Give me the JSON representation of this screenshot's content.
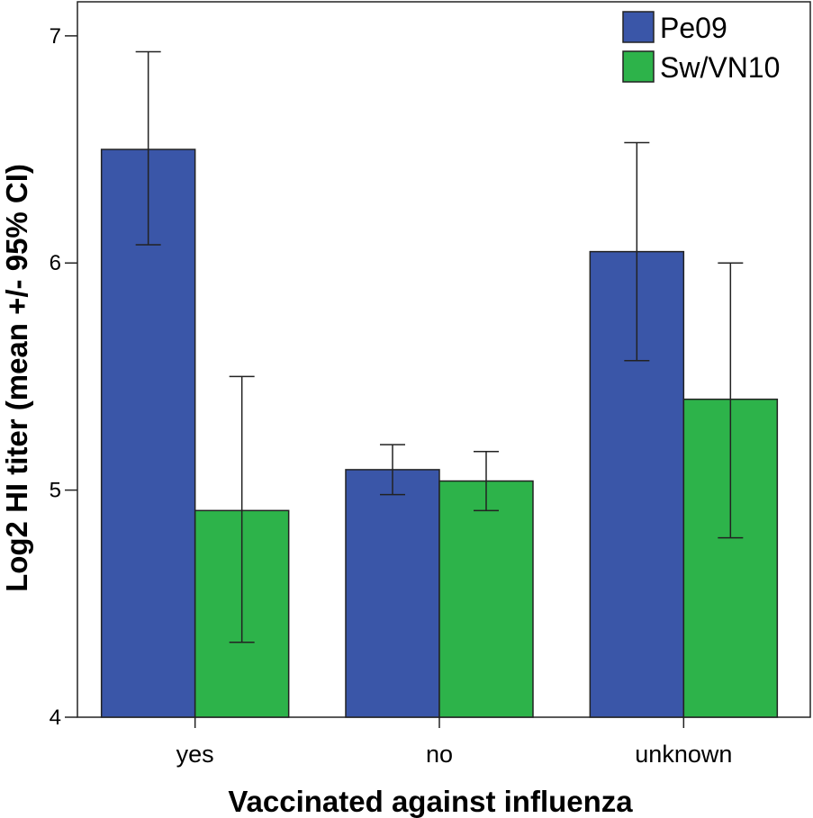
{
  "chart_data": {
    "type": "bar",
    "title": "",
    "xlabel": "Vaccinated against influenza",
    "ylabel": "Log2 HI titer (mean +/- 95% CI)",
    "ylim": [
      4,
      7.15
    ],
    "yticks": [
      4,
      5,
      6,
      7
    ],
    "grid": false,
    "legend_position": "top-right",
    "categories": [
      "yes",
      "no",
      "unknown"
    ],
    "series": [
      {
        "name": "Pe09",
        "color": "#3a56a8",
        "values": [
          6.5,
          5.09,
          6.05
        ],
        "ci_low": [
          6.08,
          4.98,
          5.57
        ],
        "ci_high": [
          6.93,
          5.2,
          6.53
        ]
      },
      {
        "name": "Sw/VN10",
        "color": "#2db34a",
        "values": [
          4.91,
          5.04,
          5.4
        ],
        "ci_low": [
          4.33,
          4.91,
          4.79
        ],
        "ci_high": [
          5.5,
          5.17,
          6.0
        ]
      }
    ]
  }
}
